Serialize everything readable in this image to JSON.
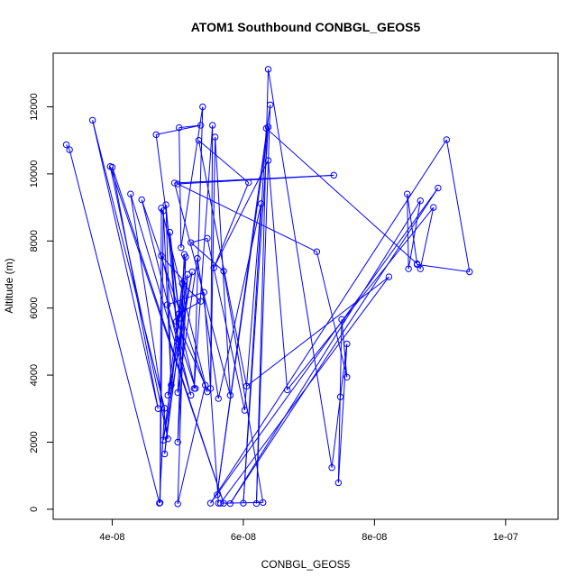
{
  "chart_data": {
    "type": "line",
    "title": "ATOM1 Southbound CONBGL_GEOS5",
    "xlabel": "CONBGL_GEOS5",
    "ylabel": "Altitude (m)",
    "xlim": [
      3.1e-08,
      1.08e-07
    ],
    "ylim": [
      -300,
      13600
    ],
    "x_ticks": [
      {
        "value": 4e-08,
        "label": "4e-08"
      },
      {
        "value": 6e-08,
        "label": "6e-08"
      },
      {
        "value": 8e-08,
        "label": "8e-08"
      },
      {
        "value": 1e-07,
        "label": "1e-07"
      }
    ],
    "y_ticks": [
      {
        "value": 0,
        "label": "0"
      },
      {
        "value": 2000,
        "label": "2000"
      },
      {
        "value": 4000,
        "label": "4000"
      },
      {
        "value": 6000,
        "label": "6000"
      },
      {
        "value": 8000,
        "label": "8000"
      },
      {
        "value": 10000,
        "label": "10000"
      },
      {
        "value": 12000,
        "label": "12000"
      }
    ],
    "grid": false,
    "color": "#0000ff",
    "marker": "open-circle",
    "series": [
      {
        "points": [
          [
            3.3e-08,
            10870
          ],
          [
            3.35e-08,
            10720
          ],
          [
            4.72e-08,
            180
          ],
          [
            4.8e-08,
            3010
          ],
          [
            3.7e-08,
            11600
          ],
          [
            4.7e-08,
            3000
          ],
          [
            4e-08,
            10200
          ],
          [
            5.7e-08,
            180
          ],
          [
            3.97e-08,
            10220
          ],
          [
            4.85e-08,
            2100
          ],
          [
            4.28e-08,
            9400
          ],
          [
            5.2e-08,
            3400
          ],
          [
            4.45e-08,
            9230
          ],
          [
            5.45e-08,
            3500
          ],
          [
            4.75e-08,
            8980
          ],
          [
            4.73e-08,
            190
          ],
          [
            4.78e-08,
            8900
          ],
          [
            4.9e-08,
            3700
          ],
          [
            4.82e-08,
            9080
          ],
          [
            5e-08,
            4990
          ],
          [
            4.88e-08,
            8260
          ],
          [
            5.03e-08,
            5700
          ],
          [
            4.67e-08,
            11170
          ],
          [
            5.35e-08,
            11450
          ],
          [
            5.02e-08,
            11380
          ],
          [
            5.05e-08,
            7800
          ],
          [
            5.38e-08,
            12000
          ],
          [
            5.25e-08,
            3600
          ],
          [
            5.53e-08,
            11450
          ],
          [
            5.5e-08,
            3600
          ],
          [
            5.57e-08,
            11100
          ],
          [
            5.8e-08,
            3400
          ],
          [
            4.95e-08,
            9730
          ],
          [
            7.38e-08,
            9960
          ],
          [
            5e-08,
            9700
          ],
          [
            7.12e-08,
            7680
          ],
          [
            7.58e-08,
            3940
          ],
          [
            7.5e-08,
            5660
          ],
          [
            7.45e-08,
            790
          ],
          [
            7.58e-08,
            4930
          ],
          [
            7.48e-08,
            3350
          ],
          [
            7.35e-08,
            1240
          ],
          [
            6.38e-08,
            13120
          ],
          [
            6.2e-08,
            170
          ],
          [
            6.41e-08,
            12060
          ],
          [
            5.6e-08,
            430
          ],
          [
            6.38e-08,
            11400
          ],
          [
            6e-08,
            180
          ],
          [
            6.35e-08,
            11360
          ],
          [
            8.65e-08,
            7320
          ],
          [
            8.5e-08,
            9400
          ],
          [
            8.52e-08,
            7170
          ],
          [
            8.7e-08,
            9200
          ],
          [
            5.8e-08,
            170
          ],
          [
            8.97e-08,
            9580
          ],
          [
            5.5e-08,
            180
          ],
          [
            9.1e-08,
            11020
          ],
          [
            9.45e-08,
            7080
          ],
          [
            8.65e-08,
            7300
          ],
          [
            8.7e-08,
            7170
          ],
          [
            8.9e-08,
            9000
          ],
          [
            6.67e-08,
            3560
          ],
          [
            6.38e-08,
            10400
          ],
          [
            5.55e-08,
            7200
          ],
          [
            6.08e-08,
            9740
          ],
          [
            5.32e-08,
            11000
          ],
          [
            6.05e-08,
            3670
          ],
          [
            8.22e-08,
            6930
          ],
          [
            5.65e-08,
            180
          ],
          [
            6.3e-08,
            200
          ],
          [
            5.7e-08,
            7100
          ],
          [
            5.2e-08,
            7950
          ],
          [
            5.45e-08,
            8080
          ],
          [
            6.02e-08,
            2950
          ],
          [
            6.27e-08,
            9110
          ],
          [
            5.62e-08,
            3300
          ],
          [
            5.3e-08,
            7480
          ],
          [
            5e-08,
            3480
          ],
          [
            5.1e-08,
            7600
          ],
          [
            5e-08,
            2000
          ],
          [
            5.15e-08,
            7000
          ],
          [
            4.8e-08,
            1650
          ],
          [
            5.07e-08,
            6730
          ],
          [
            5.35e-08,
            6200
          ],
          [
            5.02e-08,
            5830
          ],
          [
            4.98e-08,
            5600
          ],
          [
            5.42e-08,
            3700
          ],
          [
            5e-08,
            160
          ],
          [
            5.12e-08,
            7520
          ],
          [
            4.85e-08,
            3400
          ],
          [
            5.22e-08,
            7080
          ],
          [
            4.78e-08,
            2060
          ],
          [
            5.1e-08,
            6800
          ],
          [
            4.75e-08,
            7560
          ],
          [
            5.27e-08,
            3600
          ],
          [
            4.84e-08,
            6100
          ],
          [
            5.4e-08,
            6470
          ],
          [
            5.62e-08,
            180
          ]
        ]
      }
    ]
  }
}
